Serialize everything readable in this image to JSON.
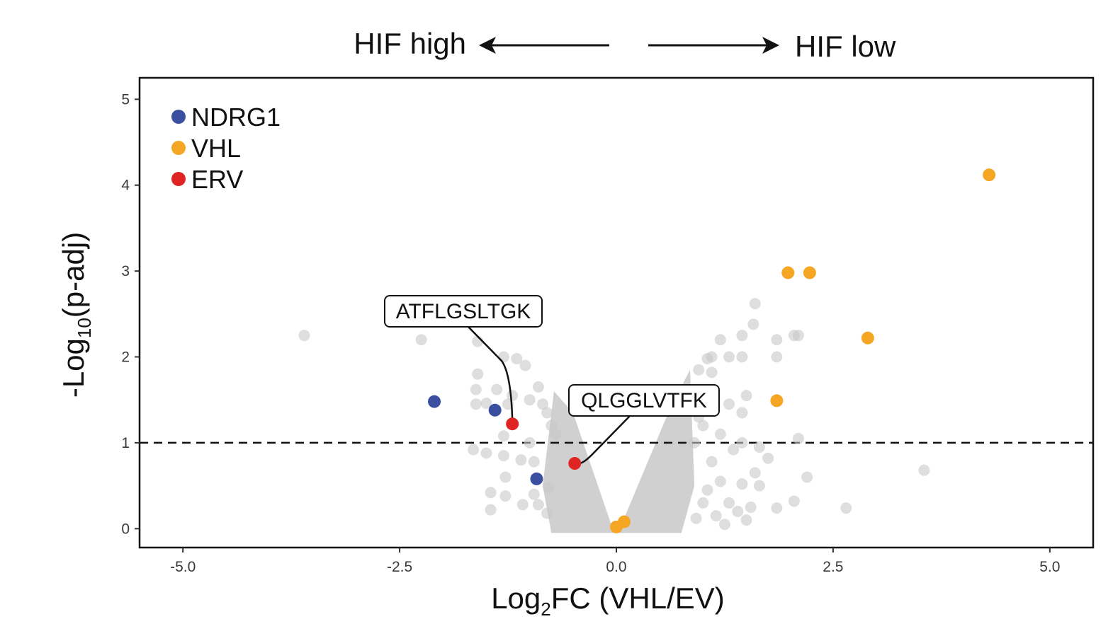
{
  "chart_data": {
    "type": "scatter",
    "title": "",
    "header": {
      "left": "HIF high",
      "right": "HIF low"
    },
    "xlabel": {
      "prefix": "Log",
      "sub": "2",
      "suffix": "FC (VHL/EV)"
    },
    "ylabel": {
      "prefix": "-Log",
      "sub": "10",
      "suffix": "(p-adj)"
    },
    "xlim": [
      -5.5,
      5.5
    ],
    "ylim": [
      -0.22,
      5.25
    ],
    "xticks": [
      -5.0,
      -2.5,
      0.0,
      2.5,
      5.0
    ],
    "xtick_labels": [
      "-5.0",
      "-2.5",
      "0.0",
      "2.5",
      "5.0"
    ],
    "yticks": [
      0,
      1,
      2,
      3,
      4,
      5
    ],
    "ytick_labels": [
      "0",
      "1",
      "2",
      "3",
      "4",
      "5"
    ],
    "threshold_y": 1,
    "colors": {
      "background": "#c8c8c8",
      "NDRG1": "#3a4fa0",
      "VHL": "#f5a623",
      "ERV": "#e02424"
    },
    "legend": {
      "position": "top-left",
      "entries": [
        {
          "name": "NDRG1",
          "color": "#3a4fa0"
        },
        {
          "name": "VHL",
          "color": "#f5a623"
        },
        {
          "name": "ERV",
          "color": "#e02424"
        }
      ]
    },
    "series": [
      {
        "name": "NDRG1",
        "color": "#3a4fa0",
        "points": [
          [
            -2.1,
            1.48
          ],
          [
            -1.4,
            1.38
          ],
          [
            -0.92,
            0.58
          ]
        ]
      },
      {
        "name": "VHL",
        "color": "#f5a623",
        "points": [
          [
            4.3,
            4.12
          ],
          [
            1.98,
            2.98
          ],
          [
            2.23,
            2.98
          ],
          [
            2.9,
            2.22
          ],
          [
            1.85,
            1.49
          ],
          [
            0.0,
            0.02
          ],
          [
            0.09,
            0.08
          ]
        ]
      },
      {
        "name": "ERV",
        "color": "#e02424",
        "points": [
          [
            -1.2,
            1.22
          ],
          [
            -0.48,
            0.76
          ]
        ]
      },
      {
        "name": "background",
        "color": "#c8c8c8",
        "points": [
          [
            -3.6,
            2.25
          ],
          [
            -2.25,
            2.2
          ],
          [
            -1.6,
            2.18
          ],
          [
            -1.3,
            2.0
          ],
          [
            -1.15,
            1.98
          ],
          [
            -1.05,
            1.9
          ],
          [
            -1.6,
            1.8
          ],
          [
            -1.62,
            1.62
          ],
          [
            -1.38,
            1.62
          ],
          [
            -1.5,
            1.46
          ],
          [
            -1.62,
            1.45
          ],
          [
            -1.2,
            1.55
          ],
          [
            -1.25,
            1.45
          ],
          [
            -1.0,
            1.5
          ],
          [
            -0.9,
            1.65
          ],
          [
            -0.85,
            1.45
          ],
          [
            -0.8,
            1.35
          ],
          [
            -0.75,
            1.2
          ],
          [
            -0.7,
            1.1
          ],
          [
            -1.3,
            1.08
          ],
          [
            -1.0,
            1.0
          ],
          [
            -1.65,
            0.92
          ],
          [
            -1.5,
            0.88
          ],
          [
            -1.3,
            0.85
          ],
          [
            -1.1,
            0.8
          ],
          [
            -0.95,
            0.78
          ],
          [
            -1.28,
            0.6
          ],
          [
            -1.45,
            0.42
          ],
          [
            -1.28,
            0.38
          ],
          [
            -1.45,
            0.22
          ],
          [
            -1.08,
            0.28
          ],
          [
            -0.95,
            0.4
          ],
          [
            -0.9,
            0.28
          ],
          [
            -0.8,
            0.18
          ],
          [
            -0.78,
            0.48
          ],
          [
            1.6,
            2.62
          ],
          [
            1.58,
            2.38
          ],
          [
            1.45,
            2.25
          ],
          [
            1.2,
            2.2
          ],
          [
            1.1,
            2.0
          ],
          [
            1.3,
            2.0
          ],
          [
            1.05,
            1.98
          ],
          [
            1.45,
            2.0
          ],
          [
            1.85,
            2.2
          ],
          [
            2.1,
            2.25
          ],
          [
            2.05,
            2.25
          ],
          [
            1.85,
            2.0
          ],
          [
            0.95,
            1.85
          ],
          [
            1.1,
            1.82
          ],
          [
            1.5,
            1.55
          ],
          [
            1.3,
            1.45
          ],
          [
            1.05,
            1.4
          ],
          [
            1.45,
            1.35
          ],
          [
            0.95,
            1.3
          ],
          [
            1.0,
            1.2
          ],
          [
            1.2,
            1.1
          ],
          [
            1.45,
            1.0
          ],
          [
            0.9,
            1.0
          ],
          [
            1.35,
            0.92
          ],
          [
            1.65,
            0.95
          ],
          [
            1.75,
            0.82
          ],
          [
            2.1,
            1.05
          ],
          [
            1.1,
            0.78
          ],
          [
            1.6,
            0.65
          ],
          [
            1.65,
            0.5
          ],
          [
            1.45,
            0.52
          ],
          [
            2.2,
            0.6
          ],
          [
            1.2,
            0.55
          ],
          [
            1.05,
            0.45
          ],
          [
            1.0,
            0.3
          ],
          [
            1.3,
            0.3
          ],
          [
            1.55,
            0.25
          ],
          [
            1.4,
            0.2
          ],
          [
            1.5,
            0.1
          ],
          [
            2.05,
            0.32
          ],
          [
            1.85,
            0.24
          ],
          [
            2.65,
            0.24
          ],
          [
            3.55,
            0.68
          ],
          [
            1.15,
            0.15
          ],
          [
            0.92,
            0.12
          ],
          [
            1.25,
            0.05
          ]
        ]
      }
    ],
    "annotations": [
      {
        "label": "ATFLGSLTGK",
        "target": [
          -1.2,
          1.22
        ]
      },
      {
        "label": "QLGGLVTFK",
        "target": [
          -0.48,
          0.76
        ]
      }
    ]
  }
}
